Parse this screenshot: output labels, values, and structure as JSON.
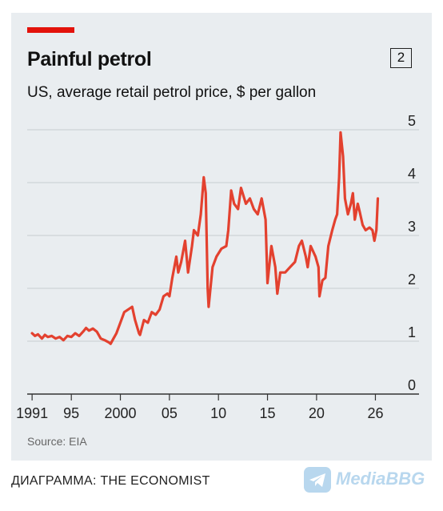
{
  "header": {
    "title": "Painful petrol",
    "badge": "2",
    "subtitle": "US, average retail petrol price, $ per gallon"
  },
  "source": "Source: EIA",
  "caption": "ДИАГРАММА: THE ECONOMIST",
  "logo": {
    "text": "MediaBBG",
    "icon": "telegram-plane-icon"
  },
  "colors": {
    "line": "#e3412f",
    "accent": "#e3120b",
    "background": "#e9edf0"
  },
  "chart_data": {
    "type": "line",
    "title": "Painful petrol",
    "subtitle": "US, average retail petrol price, $ per gallon",
    "xlabel": "",
    "ylabel": "",
    "xlim": [
      1990.5,
      2028
    ],
    "ylim": [
      0,
      5
    ],
    "y_axis_side": "right",
    "grid": true,
    "x_ticks": [
      1991,
      1995,
      2000,
      2005,
      2010,
      2015,
      2020,
      2026
    ],
    "x_tick_labels": [
      "1991",
      "95",
      "2000",
      "05",
      "10",
      "15",
      "20",
      "26"
    ],
    "y_ticks": [
      0,
      1,
      2,
      3,
      4,
      5
    ],
    "y_tick_labels": [
      "0",
      "1",
      "2",
      "3",
      "4",
      "5"
    ],
    "series": [
      {
        "x": [
          1991.0,
          1991.3,
          1991.6,
          1992.0,
          1992.3,
          1992.6,
          1993.0,
          1993.4,
          1993.8,
          1994.2,
          1994.6,
          1995.0,
          1995.4,
          1995.8,
          1996.2,
          1996.5,
          1996.8,
          1997.2,
          1997.6,
          1998.0,
          1998.4,
          1998.8,
          1999.0,
          1999.3,
          1999.6,
          2000.0,
          2000.4,
          2000.8,
          2001.2,
          2001.5,
          2001.9,
          2002.0,
          2002.4,
          2002.8,
          2003.2,
          2003.6,
          2004.0,
          2004.4,
          2004.8,
          2005.0,
          2005.3,
          2005.7,
          2005.9,
          2006.2,
          2006.6,
          2006.9,
          2007.3,
          2007.5,
          2007.9,
          2008.2,
          2008.5,
          2008.7,
          2008.9,
          2009.0,
          2009.4,
          2009.8,
          2010.3,
          2010.8,
          2011.0,
          2011.3,
          2011.6,
          2012.0,
          2012.3,
          2012.8,
          2013.2,
          2013.6,
          2014.0,
          2014.4,
          2014.8,
          2015.0,
          2015.4,
          2015.8,
          2016.0,
          2016.3,
          2016.8,
          2017.3,
          2017.8,
          2018.2,
          2018.5,
          2018.9,
          2019.1,
          2019.4,
          2019.9,
          2020.2,
          2020.3,
          2020.6,
          2020.9,
          2021.2,
          2021.6,
          2021.9,
          2022.1,
          2022.3,
          2022.45,
          2022.7,
          2022.9,
          2023.2,
          2023.5,
          2023.7,
          2023.9,
          2024.2,
          2024.4,
          2024.7,
          2025.0,
          2025.4,
          2025.7,
          2025.9,
          2026.1,
          2026.25
        ],
        "values": [
          1.15,
          1.1,
          1.13,
          1.05,
          1.12,
          1.08,
          1.1,
          1.05,
          1.08,
          1.02,
          1.1,
          1.08,
          1.15,
          1.1,
          1.18,
          1.25,
          1.2,
          1.24,
          1.18,
          1.05,
          1.02,
          0.98,
          0.95,
          1.05,
          1.15,
          1.35,
          1.55,
          1.6,
          1.65,
          1.4,
          1.15,
          1.12,
          1.4,
          1.35,
          1.55,
          1.5,
          1.6,
          1.85,
          1.9,
          1.85,
          2.2,
          2.6,
          2.3,
          2.5,
          2.9,
          2.3,
          2.8,
          3.1,
          3.0,
          3.4,
          4.1,
          3.8,
          2.0,
          1.65,
          2.4,
          2.6,
          2.75,
          2.8,
          3.1,
          3.85,
          3.6,
          3.5,
          3.9,
          3.6,
          3.7,
          3.5,
          3.4,
          3.7,
          3.3,
          2.1,
          2.8,
          2.4,
          1.9,
          2.3,
          2.3,
          2.4,
          2.5,
          2.8,
          2.9,
          2.6,
          2.4,
          2.8,
          2.6,
          2.4,
          1.85,
          2.15,
          2.2,
          2.8,
          3.1,
          3.3,
          3.4,
          4.1,
          4.95,
          4.5,
          3.7,
          3.4,
          3.6,
          3.8,
          3.3,
          3.6,
          3.45,
          3.2,
          3.1,
          3.15,
          3.1,
          2.9,
          3.1,
          3.7
        ]
      }
    ]
  }
}
